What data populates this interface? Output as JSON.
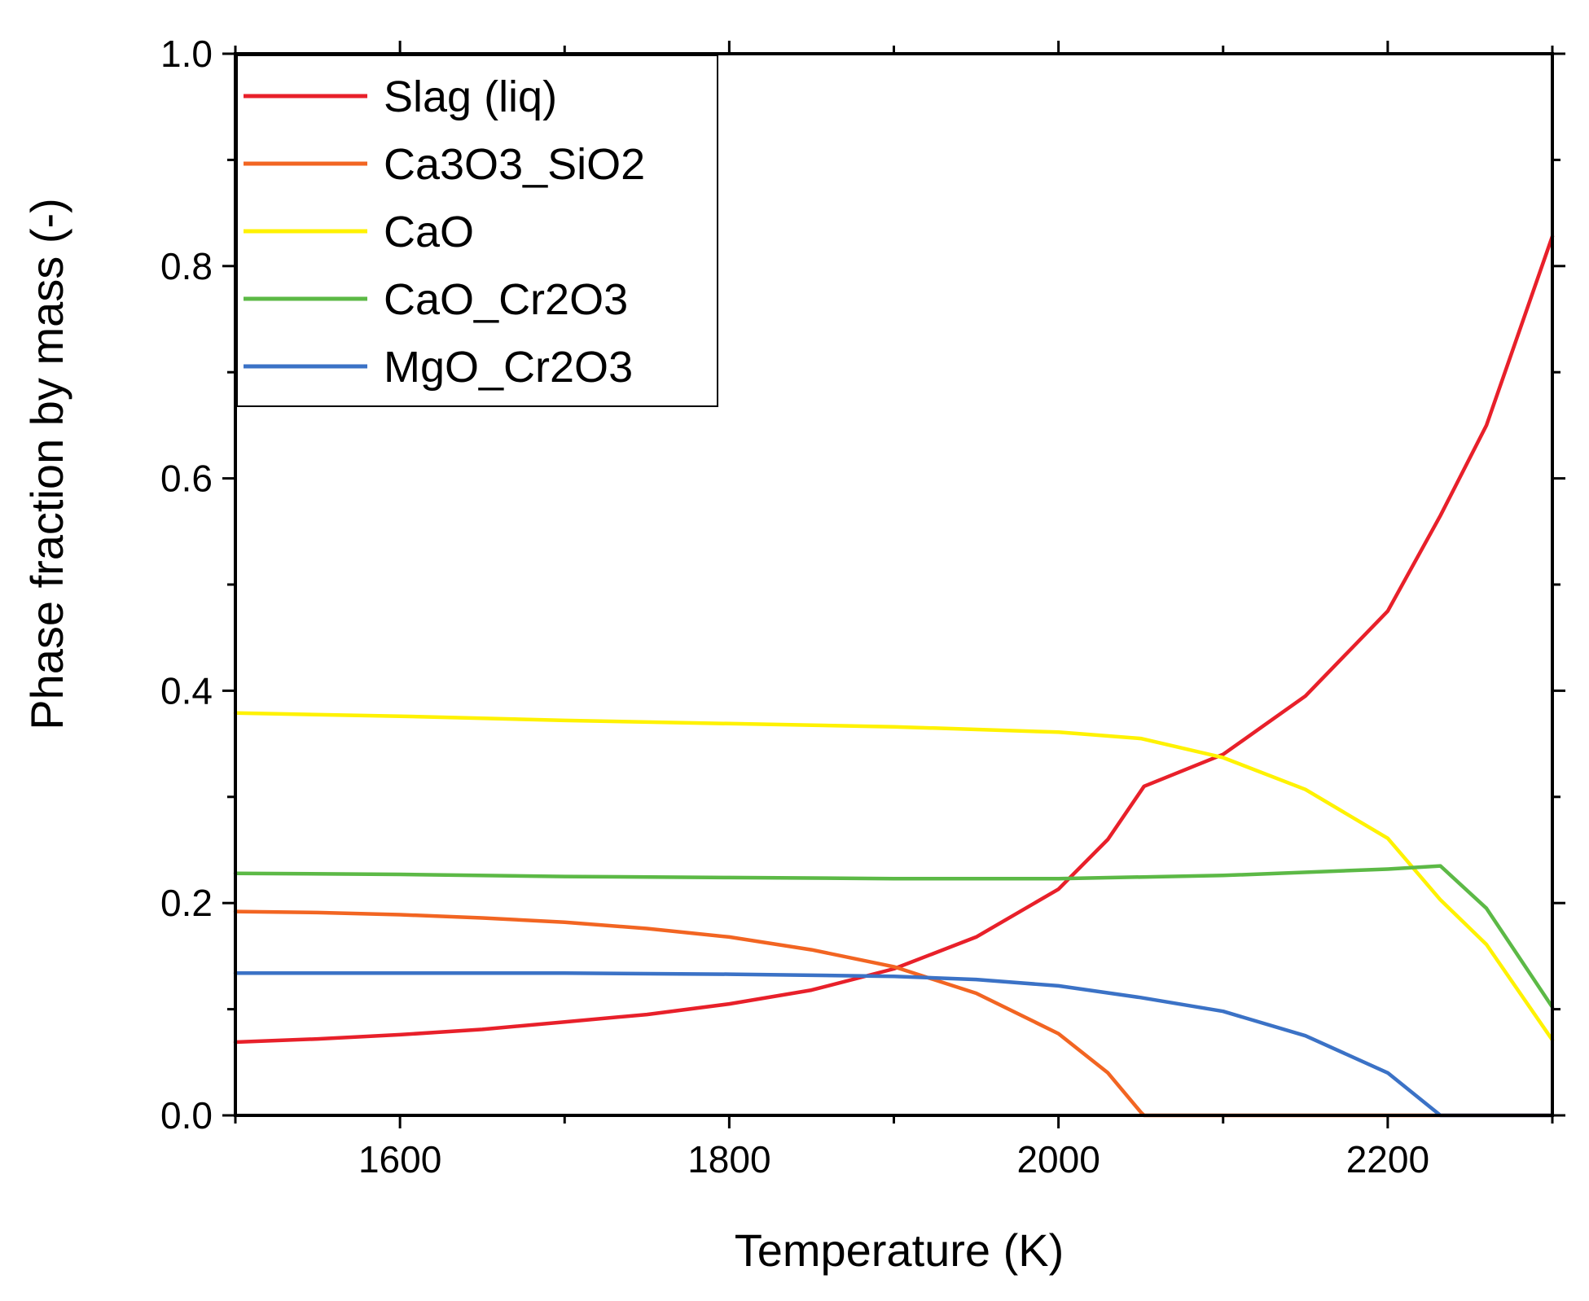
{
  "chart_data": {
    "type": "line",
    "title": "",
    "xlabel": "Temperature (K)",
    "ylabel": "Phase fraction by mass (-)",
    "xlim": [
      1500,
      2300
    ],
    "ylim": [
      0.0,
      1.0
    ],
    "xticks": [
      1600,
      1800,
      2000,
      2200
    ],
    "xtick_labels": [
      "1600",
      "1800",
      "2000",
      "2200"
    ],
    "yticks": [
      0.0,
      0.2,
      0.4,
      0.6,
      0.8,
      1.0
    ],
    "ytick_labels": [
      "0.0",
      "0.2",
      "0.4",
      "0.6",
      "0.8",
      "1.0"
    ],
    "grid": false,
    "legend_position": "top-left",
    "series": [
      {
        "name": "Slag (liq)",
        "color": "#e8202a",
        "x": [
          1500,
          1550,
          1600,
          1650,
          1700,
          1750,
          1800,
          1850,
          1900,
          1950,
          2000,
          2030,
          2052,
          2100,
          2150,
          2200,
          2232,
          2260,
          2300
        ],
        "y": [
          0.069,
          0.072,
          0.076,
          0.081,
          0.088,
          0.095,
          0.105,
          0.118,
          0.138,
          0.168,
          0.213,
          0.26,
          0.31,
          0.34,
          0.395,
          0.475,
          0.565,
          0.65,
          0.828
        ]
      },
      {
        "name": "Ca3O3_SiO2",
        "color": "#f26522",
        "x": [
          1500,
          1550,
          1600,
          1650,
          1700,
          1750,
          1800,
          1850,
          1900,
          1950,
          2000,
          2030,
          2050,
          2052,
          2300
        ],
        "y": [
          0.192,
          0.191,
          0.189,
          0.186,
          0.182,
          0.176,
          0.168,
          0.156,
          0.14,
          0.115,
          0.077,
          0.04,
          0.003,
          0.0,
          0.0
        ]
      },
      {
        "name": "CaO",
        "color": "#fff200",
        "x": [
          1500,
          1600,
          1700,
          1800,
          1900,
          2000,
          2050,
          2100,
          2150,
          2200,
          2232,
          2260,
          2300
        ],
        "y": [
          0.379,
          0.376,
          0.372,
          0.369,
          0.366,
          0.361,
          0.355,
          0.337,
          0.307,
          0.261,
          0.203,
          0.161,
          0.071
        ]
      },
      {
        "name": "CaO_Cr2O3",
        "color": "#5cb946",
        "x": [
          1500,
          1600,
          1700,
          1800,
          1900,
          2000,
          2100,
          2200,
          2232,
          2260,
          2300
        ],
        "y": [
          0.228,
          0.227,
          0.225,
          0.224,
          0.223,
          0.223,
          0.226,
          0.232,
          0.235,
          0.195,
          0.102
        ]
      },
      {
        "name": "MgO_Cr2O3",
        "color": "#3b72c6",
        "x": [
          1500,
          1600,
          1700,
          1800,
          1900,
          1950,
          2000,
          2050,
          2100,
          2150,
          2200,
          2232,
          2300
        ],
        "y": [
          0.134,
          0.134,
          0.134,
          0.133,
          0.131,
          0.128,
          0.122,
          0.111,
          0.098,
          0.075,
          0.04,
          0.0,
          0.0
        ]
      }
    ]
  }
}
